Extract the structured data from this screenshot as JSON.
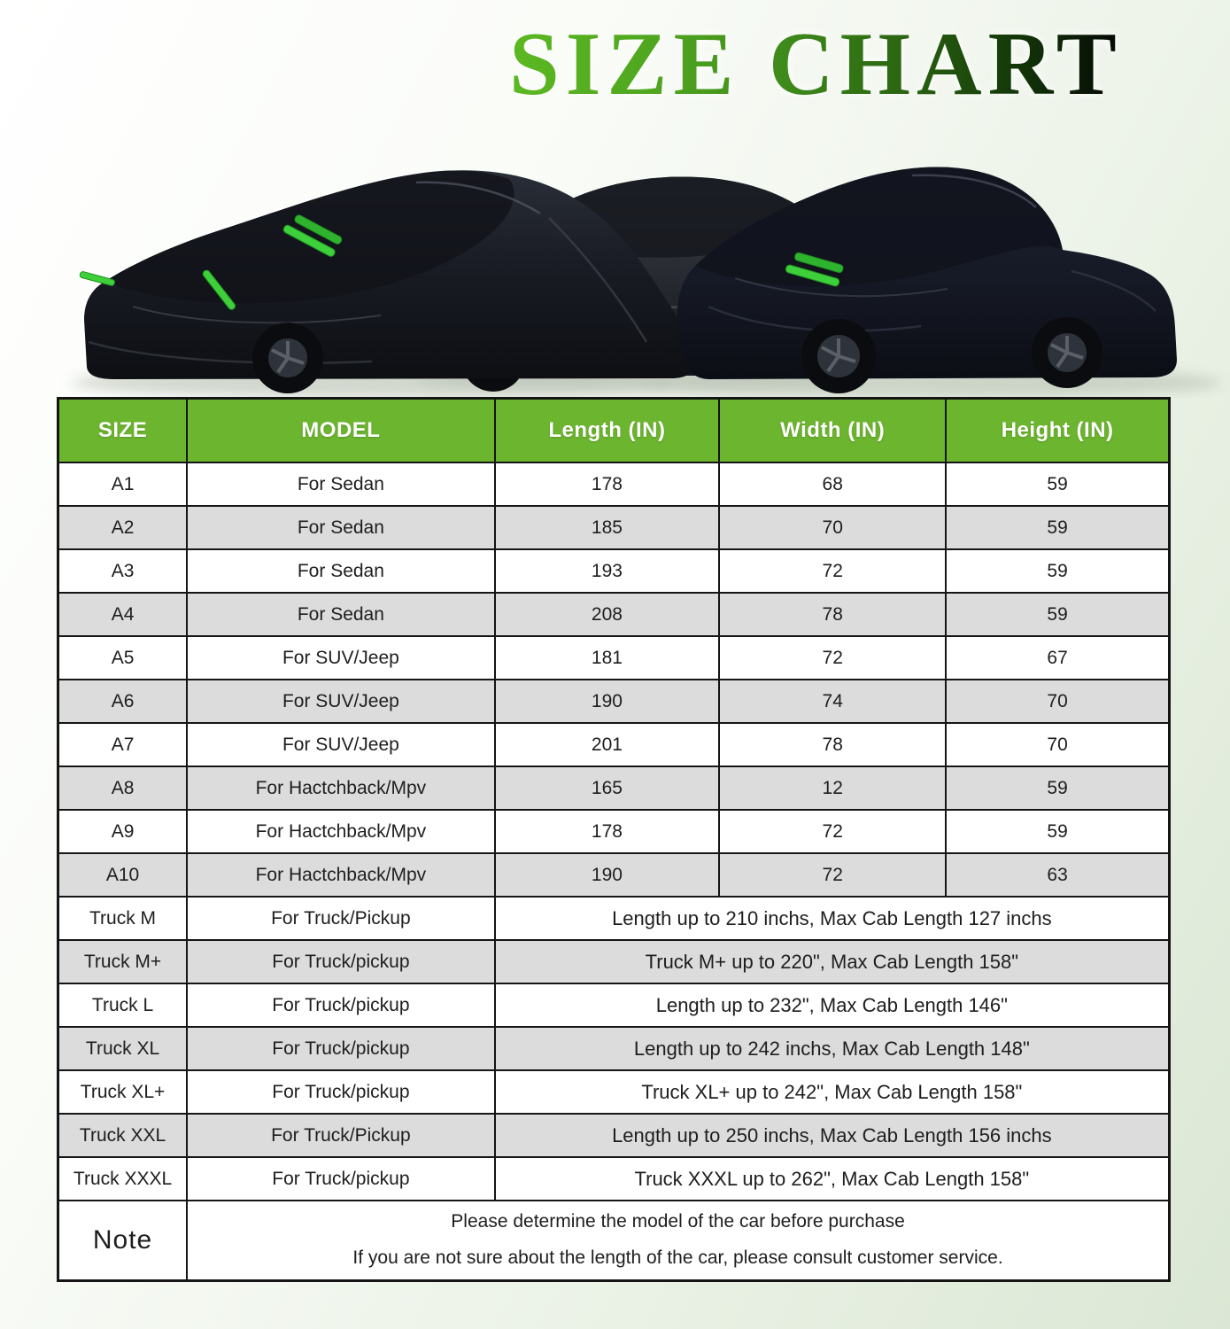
{
  "title": "SIZE CHART",
  "hero": {
    "description": "Three vehicles (sedan, SUV, pickup truck) covered with black waterproof car covers with green zipper accents",
    "cover_color": "#181b22",
    "accent_green": "#3ed03a"
  },
  "colors": {
    "header_bg": "#6cb52f",
    "header_text": "#ffffff",
    "row_alt_bg": "#dcdcdc",
    "table_border": "#151515",
    "title_gradient_start": "#5cb822",
    "title_gradient_end": "#060606"
  },
  "table": {
    "header": {
      "columns": [
        "SIZE",
        "MODEL",
        "Length (IN)",
        "Width (IN)",
        "Height (IN)"
      ]
    },
    "rows": [
      {
        "size": "A1",
        "model": "For Sedan",
        "length": "178",
        "width": "68",
        "height": "59"
      },
      {
        "size": "A2",
        "model": "For Sedan",
        "length": "185",
        "width": "70",
        "height": "59"
      },
      {
        "size": "A3",
        "model": "For Sedan",
        "length": "193",
        "width": "72",
        "height": "59"
      },
      {
        "size": "A4",
        "model": "For Sedan",
        "length": "208",
        "width": "78",
        "height": "59"
      },
      {
        "size": "A5",
        "model": "For SUV/Jeep",
        "length": "181",
        "width": "72",
        "height": "67"
      },
      {
        "size": "A6",
        "model": "For SUV/Jeep",
        "length": "190",
        "width": "74",
        "height": "70"
      },
      {
        "size": "A7",
        "model": "For SUV/Jeep",
        "length": "201",
        "width": "78",
        "height": "70"
      },
      {
        "size": "A8",
        "model": "For Hactchback/Mpv",
        "length": "165",
        "width": "12",
        "height": "59"
      },
      {
        "size": "A9",
        "model": "For Hactchback/Mpv",
        "length": "178",
        "width": "72",
        "height": "59"
      },
      {
        "size": "A10",
        "model": "For Hactchback/Mpv",
        "length": "190",
        "width": "72",
        "height": "63"
      },
      {
        "size": "Truck M",
        "model": "For Truck/Pickup",
        "span": "Length up to 210 inchs, Max Cab Length 127 inchs"
      },
      {
        "size": "Truck M+",
        "model": "For Truck/pickup",
        "span": "Truck M+ up to 220\", Max Cab Length 158\""
      },
      {
        "size": "Truck L",
        "model": "For Truck/pickup",
        "span": "Length  up to 232\", Max Cab Length 146\""
      },
      {
        "size": "Truck XL",
        "model": "For Truck/pickup",
        "span": "Length up to 242 inchs, Max Cab Length 148\""
      },
      {
        "size": "Truck XL+",
        "model": "For Truck/pickup",
        "span": "Truck XL+ up to 242\", Max Cab Length 158\""
      },
      {
        "size": "Truck XXL",
        "model": "For Truck/Pickup",
        "span": "Length up to 250 inchs, Max Cab Length 156 inchs"
      },
      {
        "size": "Truck XXXL",
        "model": "For Truck/pickup",
        "span": "Truck XXXL up to 262\", Max Cab Length 158\""
      }
    ],
    "note": {
      "label": "Note",
      "line1": "Please determine the model of the car before purchase",
      "line2": "If you are not sure about the length of the car, please consult customer service."
    }
  }
}
